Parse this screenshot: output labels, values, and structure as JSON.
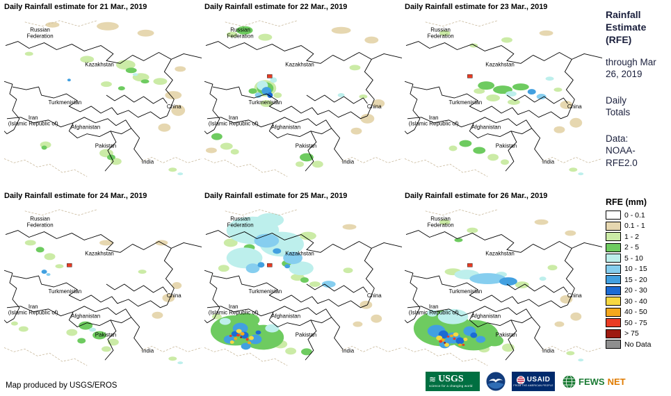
{
  "panels": [
    {
      "title": "Daily Rainfall estimate for 21 Mar., 2019"
    },
    {
      "title": "Daily Rainfall estimate for 22 Mar., 2019"
    },
    {
      "title": "Daily Rainfall estimate for 23 Mar., 2019"
    },
    {
      "title": "Daily Rainfall estimate for 24 Mar., 2019"
    },
    {
      "title": "Daily Rainfall estimate for 25 Mar., 2019"
    },
    {
      "title": "Daily Rainfall estimate for 26 Mar., 2019"
    }
  ],
  "sidebar": {
    "heading": "Rainfall Estimate (RFE)",
    "through": "through Mar 26, 2019",
    "totals": "Daily Totals",
    "data_source": "Data: NOAA-RFE2.0"
  },
  "legend": {
    "title": "RFE (mm)",
    "items": [
      {
        "label": "0 - 0.1",
        "color": "#FFFFFF"
      },
      {
        "label": "0.1 - 1",
        "color": "#E6D7B0"
      },
      {
        "label": "1 - 2",
        "color": "#CBEBA6"
      },
      {
        "label": "2 - 5",
        "color": "#6ECB60"
      },
      {
        "label": "5 - 10",
        "color": "#BDEFEC"
      },
      {
        "label": "10 - 15",
        "color": "#86CEEF"
      },
      {
        "label": "15 - 20",
        "color": "#42A0E0"
      },
      {
        "label": "20 - 30",
        "color": "#1C6BD4"
      },
      {
        "label": "30 - 40",
        "color": "#F7D842"
      },
      {
        "label": "40 - 50",
        "color": "#F5A81C"
      },
      {
        "label": "50 - 75",
        "color": "#EA3C24"
      },
      {
        "label": "> 75",
        "color": "#9E1A10"
      },
      {
        "label": "No Data",
        "color": "#8F8F8F"
      }
    ]
  },
  "map": {
    "countries": [
      {
        "lines": [
          "Russian",
          "Federation"
        ]
      },
      {
        "lines": [
          "Kazakhstan"
        ]
      },
      {
        "lines": [
          "Turkmenistan"
        ]
      },
      {
        "lines": [
          "Iran",
          "(Islamic Republic of)"
        ]
      },
      {
        "lines": [
          "Afghanistan"
        ]
      },
      {
        "lines": [
          "Pakistan"
        ]
      },
      {
        "lines": [
          "India"
        ]
      },
      {
        "lines": [
          "China"
        ]
      }
    ]
  },
  "footer": {
    "credit": "Map produced by USGS/EROS",
    "logos": {
      "usgs": {
        "label": "USGS",
        "tagline": "science for a changing world"
      },
      "usaid": {
        "label": "USAID",
        "tagline": "FROM THE AMERICAN PEOPLE"
      },
      "fews": {
        "label_primary": "FEWS",
        "label_secondary": "NET"
      }
    }
  }
}
